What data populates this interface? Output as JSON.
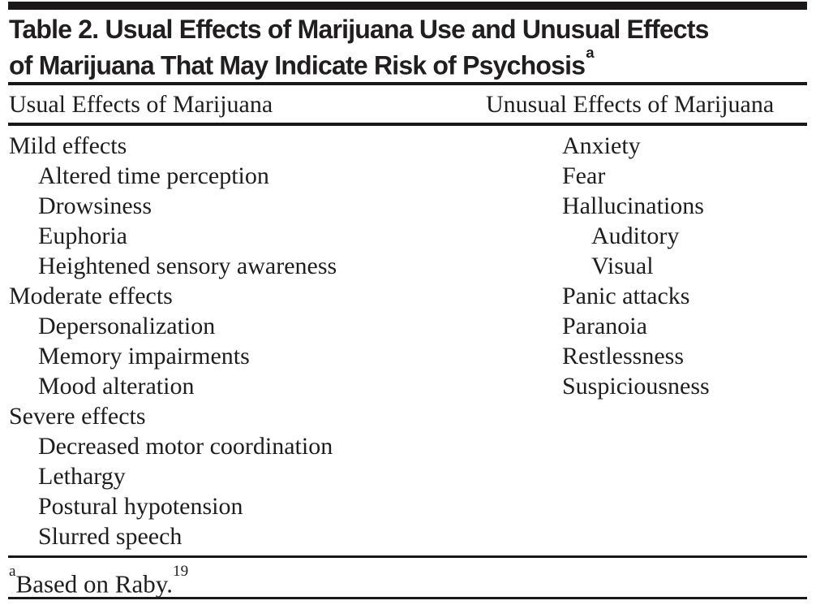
{
  "document": {
    "title": {
      "lines": [
        "Table 2. Usual Effects of Marijuana Use and Unusual Effects",
        "of Marijuana That May Indicate Risk of Psychosis"
      ],
      "superscript": "a"
    },
    "columns": [
      {
        "header": "Usual Effects of Marijuana",
        "items": [
          {
            "text": "Mild effects",
            "indent": 0
          },
          {
            "text": "Altered time perception",
            "indent": 1
          },
          {
            "text": "Drowsiness",
            "indent": 1
          },
          {
            "text": "Euphoria",
            "indent": 1
          },
          {
            "text": "Heightened sensory awareness",
            "indent": 1
          },
          {
            "text": "Moderate effects",
            "indent": 0
          },
          {
            "text": "Depersonalization",
            "indent": 1
          },
          {
            "text": "Memory impairments",
            "indent": 1
          },
          {
            "text": "Mood alteration",
            "indent": 1
          },
          {
            "text": "Severe effects",
            "indent": 0
          },
          {
            "text": "Decreased motor coordination",
            "indent": 1
          },
          {
            "text": "Lethargy",
            "indent": 1
          },
          {
            "text": "Postural hypotension",
            "indent": 1
          },
          {
            "text": "Slurred speech",
            "indent": 1
          }
        ]
      },
      {
        "header": "Unusual Effects of Marijuana",
        "items": [
          {
            "text": "Anxiety",
            "indent": 0
          },
          {
            "text": "Fear",
            "indent": 0
          },
          {
            "text": "Hallucinations",
            "indent": 0
          },
          {
            "text": "Auditory",
            "indent": 1
          },
          {
            "text": "Visual",
            "indent": 1
          },
          {
            "text": "Panic attacks",
            "indent": 0
          },
          {
            "text": "Paranoia",
            "indent": 0
          },
          {
            "text": "Restlessness",
            "indent": 0
          },
          {
            "text": "Suspiciousness",
            "indent": 0
          }
        ]
      }
    ],
    "footnote": {
      "marker": "a",
      "text": "Based on Raby.",
      "reference": "19"
    },
    "colors": {
      "ink": "#1f1d1e",
      "rule": "#191718",
      "background": "#ffffff"
    }
  }
}
